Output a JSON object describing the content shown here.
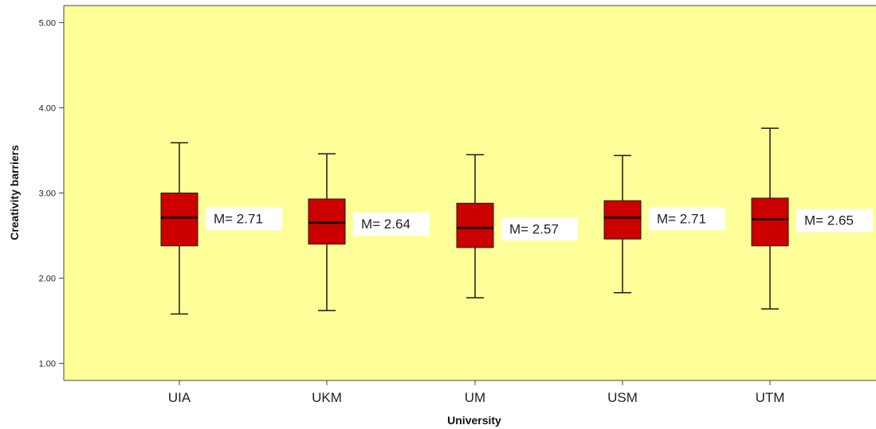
{
  "chart_data": {
    "type": "boxplot",
    "title": "",
    "xlabel": "University",
    "ylabel": "Creativity barriers",
    "ylim": [
      0.8,
      5.2
    ],
    "yticks": [
      1.0,
      2.0,
      3.0,
      4.0,
      5.0
    ],
    "ytick_labels": [
      "1.00",
      "2.00",
      "3.00",
      "4.00",
      "5.00"
    ],
    "categories": [
      "UIA",
      "UKM",
      "UM",
      "USM",
      "UTM"
    ],
    "boxes": [
      {
        "category": "UIA",
        "min": 1.58,
        "q1": 2.38,
        "median": 2.71,
        "q3": 3.0,
        "max": 3.59,
        "mean_label": "M= 2.71"
      },
      {
        "category": "UKM",
        "min": 1.62,
        "q1": 2.4,
        "median": 2.65,
        "q3": 2.93,
        "max": 3.46,
        "mean_label": "M= 2.64"
      },
      {
        "category": "UM",
        "min": 1.77,
        "q1": 2.36,
        "median": 2.59,
        "q3": 2.88,
        "max": 3.45,
        "mean_label": "M= 2.57"
      },
      {
        "category": "USM",
        "min": 1.83,
        "q1": 2.46,
        "median": 2.71,
        "q3": 2.91,
        "max": 3.44,
        "mean_label": "M= 2.71"
      },
      {
        "category": "UTM",
        "min": 1.64,
        "q1": 2.38,
        "median": 2.69,
        "q3": 2.94,
        "max": 3.76,
        "mean_label": "M= 2.65"
      }
    ],
    "colors": {
      "plot_background": "#ffff99",
      "box_fill": "#cc0000",
      "outline": "#1a1a1a",
      "label_background": "#ffffff"
    },
    "grid": false,
    "legend": "none"
  }
}
